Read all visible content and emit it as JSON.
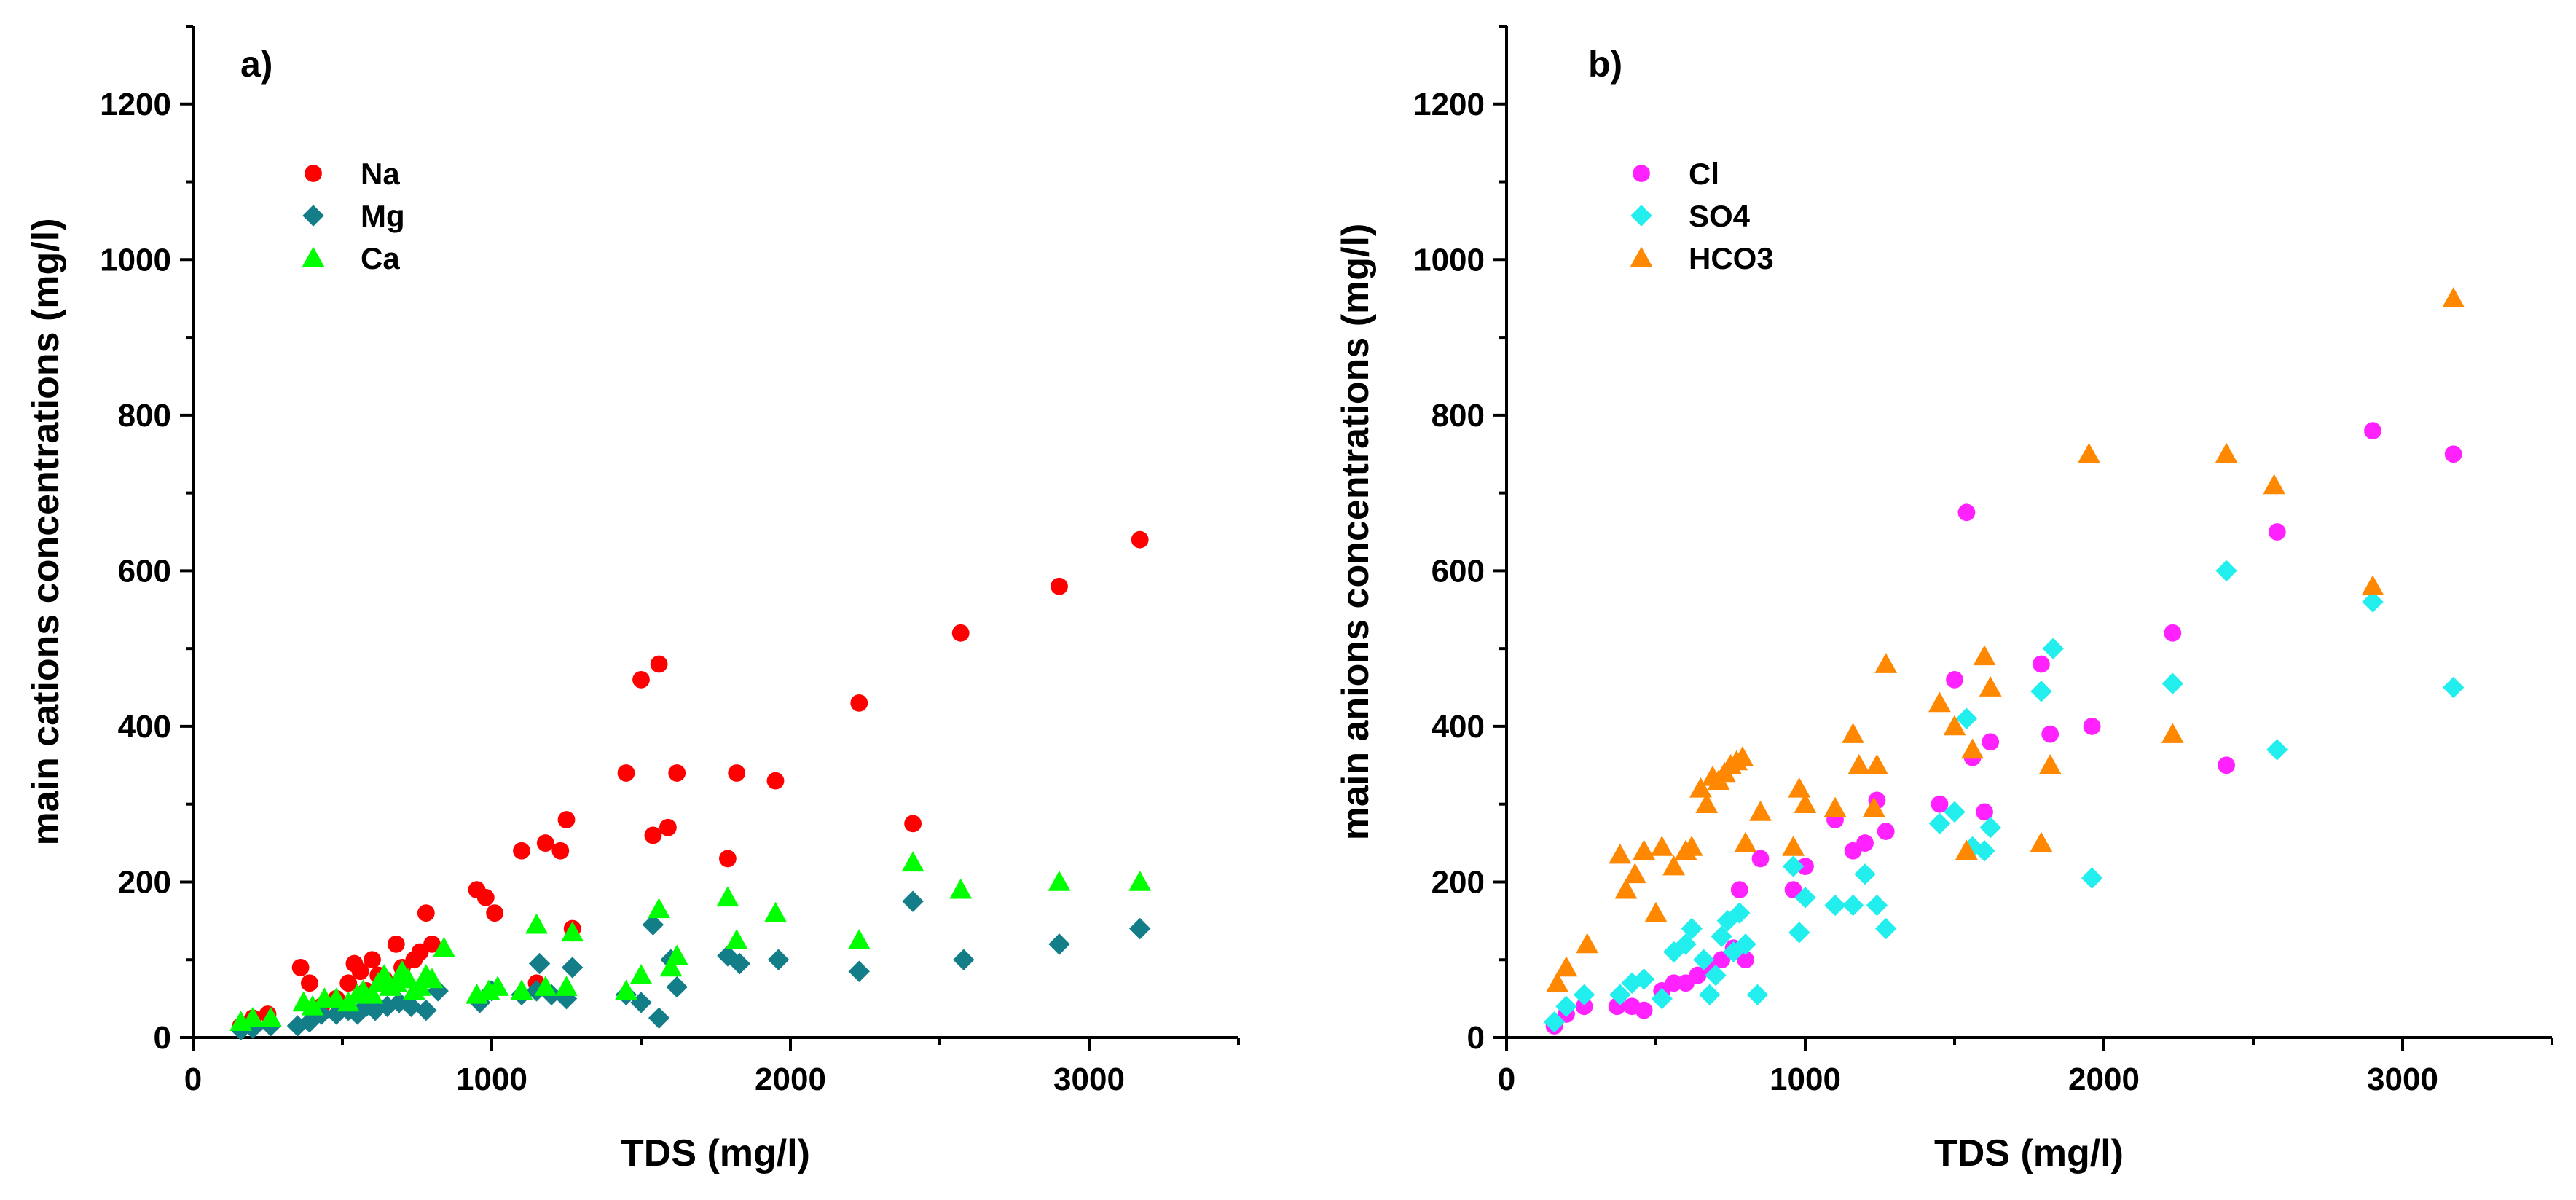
{
  "chart_data": [
    {
      "type": "scatter",
      "panel_label": "a)",
      "xlabel": "TDS (mg/l)",
      "ylabel": "main cations concentrations (mg/l)",
      "xlim": [
        0,
        3500
      ],
      "ylim": [
        0,
        1300
      ],
      "x_ticks": [
        0,
        1000,
        2000,
        3000
      ],
      "y_ticks": [
        0,
        200,
        400,
        600,
        800,
        1000,
        1200
      ],
      "grid": false,
      "legend": "top-left",
      "series": [
        {
          "name": "Na",
          "marker": "circle",
          "color": "#ff0000",
          "points": [
            [
              160,
              15
            ],
            [
              200,
              25
            ],
            [
              250,
              30
            ],
            [
              360,
              90
            ],
            [
              390,
              70
            ],
            [
              430,
              40
            ],
            [
              480,
              50
            ],
            [
              520,
              70
            ],
            [
              540,
              95
            ],
            [
              560,
              85
            ],
            [
              580,
              60
            ],
            [
              600,
              100
            ],
            [
              620,
              80
            ],
            [
              640,
              75
            ],
            [
              680,
              120
            ],
            [
              700,
              90
            ],
            [
              740,
              100
            ],
            [
              760,
              110
            ],
            [
              780,
              160
            ],
            [
              800,
              120
            ],
            [
              950,
              190
            ],
            [
              980,
              180
            ],
            [
              1010,
              160
            ],
            [
              1100,
              240
            ],
            [
              1150,
              70
            ],
            [
              1180,
              250
            ],
            [
              1230,
              240
            ],
            [
              1250,
              280
            ],
            [
              1270,
              140
            ],
            [
              1450,
              340
            ],
            [
              1500,
              460
            ],
            [
              1540,
              260
            ],
            [
              1560,
              480
            ],
            [
              1590,
              270
            ],
            [
              1620,
              340
            ],
            [
              1790,
              230
            ],
            [
              1820,
              340
            ],
            [
              1950,
              330
            ],
            [
              2230,
              430
            ],
            [
              2410,
              275
            ],
            [
              2570,
              520
            ],
            [
              2900,
              580
            ],
            [
              3170,
              640
            ]
          ]
        },
        {
          "name": "Mg",
          "marker": "diamond",
          "color": "#137e87",
          "points": [
            [
              160,
              10
            ],
            [
              200,
              12
            ],
            [
              260,
              15
            ],
            [
              350,
              15
            ],
            [
              390,
              20
            ],
            [
              430,
              30
            ],
            [
              480,
              30
            ],
            [
              520,
              35
            ],
            [
              550,
              30
            ],
            [
              580,
              40
            ],
            [
              610,
              35
            ],
            [
              650,
              40
            ],
            [
              690,
              45
            ],
            [
              730,
              40
            ],
            [
              780,
              35
            ],
            [
              820,
              60
            ],
            [
              960,
              45
            ],
            [
              1000,
              60
            ],
            [
              1100,
              55
            ],
            [
              1150,
              60
            ],
            [
              1160,
              95
            ],
            [
              1200,
              55
            ],
            [
              1250,
              50
            ],
            [
              1270,
              90
            ],
            [
              1450,
              55
            ],
            [
              1500,
              45
            ],
            [
              1540,
              145
            ],
            [
              1560,
              25
            ],
            [
              1600,
              100
            ],
            [
              1620,
              65
            ],
            [
              1790,
              105
            ],
            [
              1830,
              95
            ],
            [
              1960,
              100
            ],
            [
              2230,
              85
            ],
            [
              2410,
              175
            ],
            [
              2580,
              100
            ],
            [
              2900,
              120
            ],
            [
              3170,
              140
            ]
          ]
        },
        {
          "name": "Ca",
          "marker": "triangle",
          "color": "#00ff00",
          "points": [
            [
              160,
              20
            ],
            [
              200,
              25
            ],
            [
              260,
              25
            ],
            [
              370,
              45
            ],
            [
              400,
              40
            ],
            [
              440,
              50
            ],
            [
              480,
              50
            ],
            [
              520,
              45
            ],
            [
              550,
              55
            ],
            [
              570,
              60
            ],
            [
              600,
              55
            ],
            [
              620,
              70
            ],
            [
              640,
              80
            ],
            [
              660,
              65
            ],
            [
              680,
              70
            ],
            [
              700,
              85
            ],
            [
              720,
              75
            ],
            [
              740,
              60
            ],
            [
              760,
              65
            ],
            [
              780,
              80
            ],
            [
              800,
              75
            ],
            [
              840,
              115
            ],
            [
              950,
              55
            ],
            [
              990,
              60
            ],
            [
              1020,
              65
            ],
            [
              1100,
              60
            ],
            [
              1150,
              145
            ],
            [
              1180,
              65
            ],
            [
              1250,
              65
            ],
            [
              1270,
              135
            ],
            [
              1450,
              60
            ],
            [
              1500,
              80
            ],
            [
              1560,
              165
            ],
            [
              1600,
              90
            ],
            [
              1620,
              105
            ],
            [
              1790,
              180
            ],
            [
              1820,
              125
            ],
            [
              1950,
              160
            ],
            [
              2230,
              125
            ],
            [
              2410,
              225
            ],
            [
              2570,
              190
            ],
            [
              2900,
              200
            ],
            [
              3170,
              200
            ]
          ]
        }
      ]
    },
    {
      "type": "scatter",
      "panel_label": "b)",
      "xlabel": "TDS (mg/l)",
      "ylabel": "main anions concentrations (mg/l)",
      "xlim": [
        0,
        3500
      ],
      "ylim": [
        0,
        1300
      ],
      "x_ticks": [
        0,
        1000,
        2000,
        3000
      ],
      "y_ticks": [
        0,
        200,
        400,
        600,
        800,
        1000,
        1200
      ],
      "grid": false,
      "legend": "top-left",
      "series": [
        {
          "name": "Cl",
          "marker": "circle",
          "color": "#ff22ff",
          "points": [
            [
              160,
              15
            ],
            [
              200,
              30
            ],
            [
              260,
              40
            ],
            [
              370,
              40
            ],
            [
              420,
              40
            ],
            [
              460,
              35
            ],
            [
              520,
              60
            ],
            [
              560,
              70
            ],
            [
              600,
              70
            ],
            [
              640,
              80
            ],
            [
              680,
              90
            ],
            [
              720,
              100
            ],
            [
              760,
              115
            ],
            [
              780,
              190
            ],
            [
              800,
              100
            ],
            [
              850,
              230
            ],
            [
              960,
              190
            ],
            [
              1000,
              220
            ],
            [
              1100,
              280
            ],
            [
              1160,
              240
            ],
            [
              1200,
              250
            ],
            [
              1240,
              305
            ],
            [
              1270,
              265
            ],
            [
              1450,
              300
            ],
            [
              1500,
              460
            ],
            [
              1540,
              675
            ],
            [
              1560,
              360
            ],
            [
              1600,
              290
            ],
            [
              1620,
              380
            ],
            [
              1790,
              480
            ],
            [
              1820,
              390
            ],
            [
              1960,
              400
            ],
            [
              2230,
              520
            ],
            [
              2410,
              350
            ],
            [
              2580,
              650
            ],
            [
              2900,
              780
            ],
            [
              3170,
              750
            ]
          ]
        },
        {
          "name": "SO4",
          "marker": "diamond",
          "color": "#22eeee",
          "points": [
            [
              160,
              20
            ],
            [
              200,
              40
            ],
            [
              260,
              55
            ],
            [
              380,
              55
            ],
            [
              420,
              70
            ],
            [
              460,
              75
            ],
            [
              520,
              50
            ],
            [
              560,
              110
            ],
            [
              600,
              120
            ],
            [
              620,
              140
            ],
            [
              660,
              100
            ],
            [
              680,
              55
            ],
            [
              700,
              80
            ],
            [
              720,
              130
            ],
            [
              740,
              150
            ],
            [
              760,
              110
            ],
            [
              780,
              160
            ],
            [
              800,
              120
            ],
            [
              840,
              55
            ],
            [
              960,
              220
            ],
            [
              980,
              135
            ],
            [
              1000,
              180
            ],
            [
              1100,
              170
            ],
            [
              1160,
              170
            ],
            [
              1200,
              210
            ],
            [
              1240,
              170
            ],
            [
              1270,
              140
            ],
            [
              1450,
              275
            ],
            [
              1500,
              290
            ],
            [
              1540,
              410
            ],
            [
              1560,
              245
            ],
            [
              1600,
              240
            ],
            [
              1620,
              270
            ],
            [
              1790,
              445
            ],
            [
              1830,
              500
            ],
            [
              1960,
              205
            ],
            [
              2230,
              455
            ],
            [
              2410,
              600
            ],
            [
              2580,
              370
            ],
            [
              2900,
              560
            ],
            [
              3170,
              450
            ]
          ]
        },
        {
          "name": "HCO3",
          "marker": "triangle",
          "color": "#ff8800",
          "points": [
            [
              170,
              70
            ],
            [
              200,
              90
            ],
            [
              270,
              120
            ],
            [
              380,
              235
            ],
            [
              400,
              190
            ],
            [
              430,
              210
            ],
            [
              460,
              240
            ],
            [
              500,
              160
            ],
            [
              520,
              245
            ],
            [
              560,
              220
            ],
            [
              600,
              240
            ],
            [
              620,
              245
            ],
            [
              650,
              320
            ],
            [
              670,
              300
            ],
            [
              690,
              335
            ],
            [
              710,
              330
            ],
            [
              730,
              340
            ],
            [
              750,
              350
            ],
            [
              770,
              355
            ],
            [
              790,
              360
            ],
            [
              800,
              250
            ],
            [
              850,
              290
            ],
            [
              960,
              245
            ],
            [
              980,
              320
            ],
            [
              1000,
              300
            ],
            [
              1100,
              295
            ],
            [
              1160,
              390
            ],
            [
              1180,
              350
            ],
            [
              1230,
              295
            ],
            [
              1240,
              350
            ],
            [
              1270,
              480
            ],
            [
              1450,
              430
            ],
            [
              1500,
              400
            ],
            [
              1540,
              240
            ],
            [
              1560,
              370
            ],
            [
              1600,
              490
            ],
            [
              1620,
              450
            ],
            [
              1790,
              250
            ],
            [
              1820,
              350
            ],
            [
              1950,
              750
            ],
            [
              2230,
              390
            ],
            [
              2410,
              750
            ],
            [
              2570,
              710
            ],
            [
              2900,
              580
            ],
            [
              3170,
              950
            ]
          ]
        }
      ]
    }
  ]
}
